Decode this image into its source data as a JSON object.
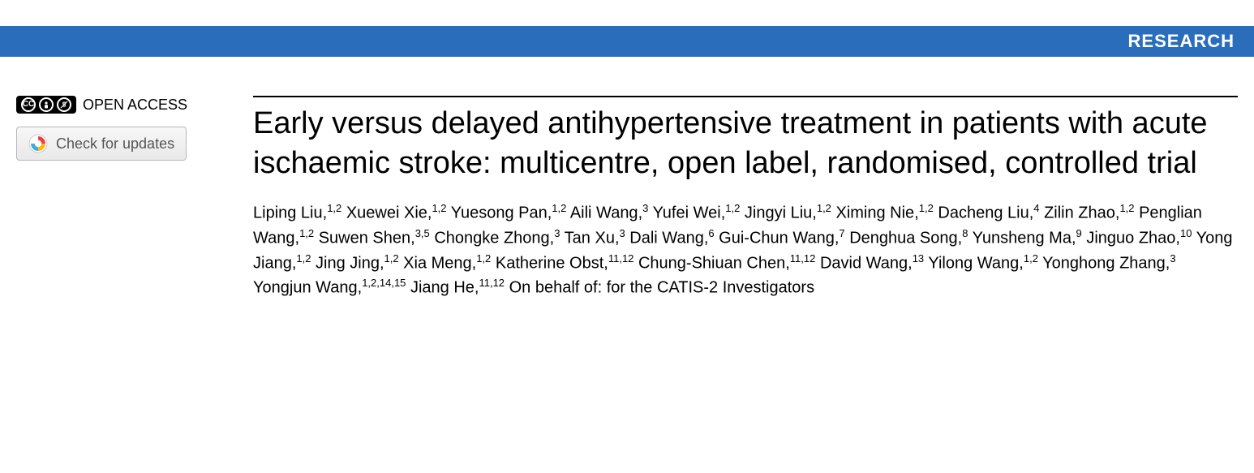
{
  "banner": {
    "label": "RESEARCH",
    "bg": "#2a6ebb",
    "fg": "#ffffff"
  },
  "sidebar": {
    "open_access_label": "OPEN ACCESS",
    "cc_text": "CC",
    "check_updates_label": "Check for updates"
  },
  "article": {
    "title": "Early versus delayed antihypertensive treatment in patients with acute ischaemic stroke: multicentre, open label, randomised, controlled trial",
    "authors": [
      {
        "name": "Liping Liu",
        "aff": "1,2"
      },
      {
        "name": "Xuewei Xie",
        "aff": "1,2"
      },
      {
        "name": "Yuesong Pan",
        "aff": "1,2"
      },
      {
        "name": "Aili Wang",
        "aff": "3"
      },
      {
        "name": "Yufei Wei",
        "aff": "1,2"
      },
      {
        "name": "Jingyi Liu",
        "aff": "1,2"
      },
      {
        "name": "Ximing Nie",
        "aff": "1,2"
      },
      {
        "name": "Dacheng Liu",
        "aff": "4"
      },
      {
        "name": "Zilin Zhao",
        "aff": "1,2"
      },
      {
        "name": "Penglian Wang",
        "aff": "1,2"
      },
      {
        "name": "Suwen Shen",
        "aff": "3,5"
      },
      {
        "name": "Chongke Zhong",
        "aff": "3"
      },
      {
        "name": "Tan Xu",
        "aff": "3"
      },
      {
        "name": "Dali Wang",
        "aff": "6"
      },
      {
        "name": "Gui-Chun Wang",
        "aff": "7"
      },
      {
        "name": "Denghua Song",
        "aff": "8"
      },
      {
        "name": "Yunsheng Ma",
        "aff": "9"
      },
      {
        "name": "Jinguo Zhao",
        "aff": "10"
      },
      {
        "name": "Yong Jiang",
        "aff": "1,2"
      },
      {
        "name": "Jing Jing",
        "aff": "1,2"
      },
      {
        "name": "Xia Meng",
        "aff": "1,2"
      },
      {
        "name": "Katherine Obst",
        "aff": "11,12"
      },
      {
        "name": "Chung-Shiuan Chen",
        "aff": "11,12"
      },
      {
        "name": "David Wang",
        "aff": "13"
      },
      {
        "name": "Yilong Wang",
        "aff": "1,2"
      },
      {
        "name": "Yonghong Zhang",
        "aff": "3"
      },
      {
        "name": "Yongjun Wang",
        "aff": "1,2,14,15"
      },
      {
        "name": "Jiang He",
        "aff": "11,12"
      }
    ],
    "group_statement": "On behalf of: for the CATIS-2 Investigators"
  },
  "typography": {
    "title_fontsize": 38,
    "author_fontsize": 20,
    "banner_fontsize": 22,
    "title_font": "Arial, Helvetica, sans-serif",
    "body_color": "#000000"
  }
}
